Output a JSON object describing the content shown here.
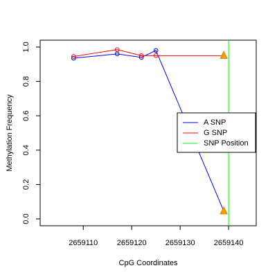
{
  "chart_data": {
    "type": "line",
    "xlabel": "CpG Coordinates",
    "ylabel": "Methylation Frequency",
    "x": [
      2659108,
      2659117,
      2659122,
      2659125,
      2659139
    ],
    "series": [
      {
        "name": "A SNP",
        "color": "#0000ff",
        "values": [
          0.935,
          0.96,
          0.94,
          0.98,
          0.045
        ]
      },
      {
        "name": "G SNP",
        "color": "#ff0000",
        "values": [
          0.945,
          0.985,
          0.95,
          0.95,
          0.95
        ]
      }
    ],
    "snp_position": {
      "name": "SNP Position",
      "value": 2659140,
      "color": "#00ff00"
    },
    "xlim": [
      2659101.1,
      2659145.7
    ],
    "ylim": [
      -0.04,
      1.04
    ],
    "xticks": [
      2659110,
      2659120,
      2659130,
      2659140
    ],
    "yticks": [
      {
        "value": 0,
        "label": "0.0"
      },
      {
        "value": 0.2,
        "label": "0.2"
      },
      {
        "value": 0.4,
        "label": "0.4"
      },
      {
        "value": 0.6,
        "label": "0.6"
      },
      {
        "value": 0.8,
        "label": "0.8"
      },
      {
        "value": 1,
        "label": "1.0"
      }
    ],
    "legend": "right"
  }
}
